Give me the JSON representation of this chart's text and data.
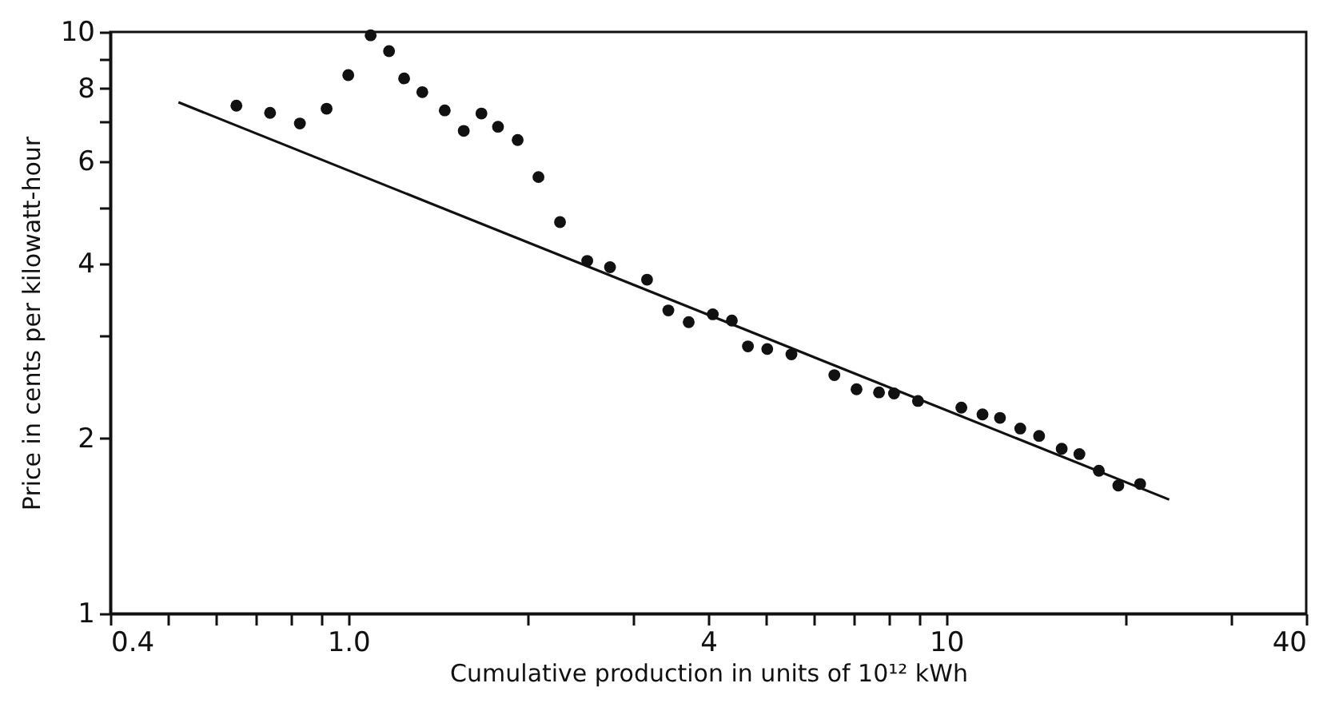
{
  "chart_data": {
    "type": "scatter",
    "xlabel": "Cumulative production in units of 10¹² kWh",
    "ylabel": "Price in cents per kilowatt-hour",
    "log": "xy",
    "grid": false,
    "xlim": [
      0.4,
      40
    ],
    "ylim": [
      1,
      10
    ],
    "xticks": [
      0.4,
      {
        "value": 0.5,
        "label": null
      },
      {
        "value": 0.6,
        "label": null
      },
      {
        "value": 0.7,
        "label": null
      },
      {
        "value": 0.8,
        "label": null
      },
      {
        "value": 0.9,
        "label": null
      },
      {
        "value": 1,
        "label": "1.0"
      },
      {
        "value": 2,
        "label": null
      },
      {
        "value": 3,
        "label": null
      },
      4,
      {
        "value": 5,
        "label": null
      },
      {
        "value": 6,
        "label": null
      },
      {
        "value": 7,
        "label": null
      },
      {
        "value": 8,
        "label": null
      },
      {
        "value": 9,
        "label": null
      },
      10,
      {
        "value": 20,
        "label": null
      },
      {
        "value": 30,
        "label": null
      },
      40
    ],
    "yticks": [
      1,
      2,
      {
        "value": 3,
        "label": null
      },
      4,
      {
        "value": 5,
        "label": null
      },
      6,
      {
        "value": 7,
        "label": null
      },
      8,
      {
        "value": 9,
        "label": null
      },
      10
    ],
    "series": [
      {
        "marker": "circle",
        "color": "#111111",
        "x": [
          0.65,
          0.74,
          0.83,
          0.92,
          1.0,
          1.09,
          1.17,
          1.24,
          1.33,
          1.45,
          1.56,
          1.67,
          1.78,
          1.92,
          2.08,
          2.26,
          2.51,
          2.74,
          3.16,
          3.43,
          3.71,
          4.07,
          4.38,
          4.66,
          5.02,
          5.51,
          6.5,
          7.08,
          7.72,
          8.18,
          8.97,
          10.6,
          11.5,
          12.3,
          13.3,
          14.3,
          15.6,
          16.7,
          18.0,
          19.4,
          21.1
        ],
        "values": [
          7.47,
          7.26,
          6.96,
          7.38,
          8.43,
          9.87,
          9.27,
          8.32,
          7.88,
          7.33,
          6.76,
          7.24,
          6.87,
          6.52,
          5.63,
          4.71,
          4.04,
          3.94,
          3.75,
          3.32,
          3.17,
          3.27,
          3.19,
          2.88,
          2.85,
          2.79,
          2.57,
          2.43,
          2.4,
          2.39,
          2.32,
          2.26,
          2.2,
          2.17,
          2.08,
          2.02,
          1.92,
          1.88,
          1.76,
          1.66,
          1.67
        ]
      },
      {
        "type": "line",
        "color": "#111111",
        "x": [
          0.52,
          23.6
        ],
        "values": [
          7.57,
          1.57
        ]
      }
    ]
  }
}
